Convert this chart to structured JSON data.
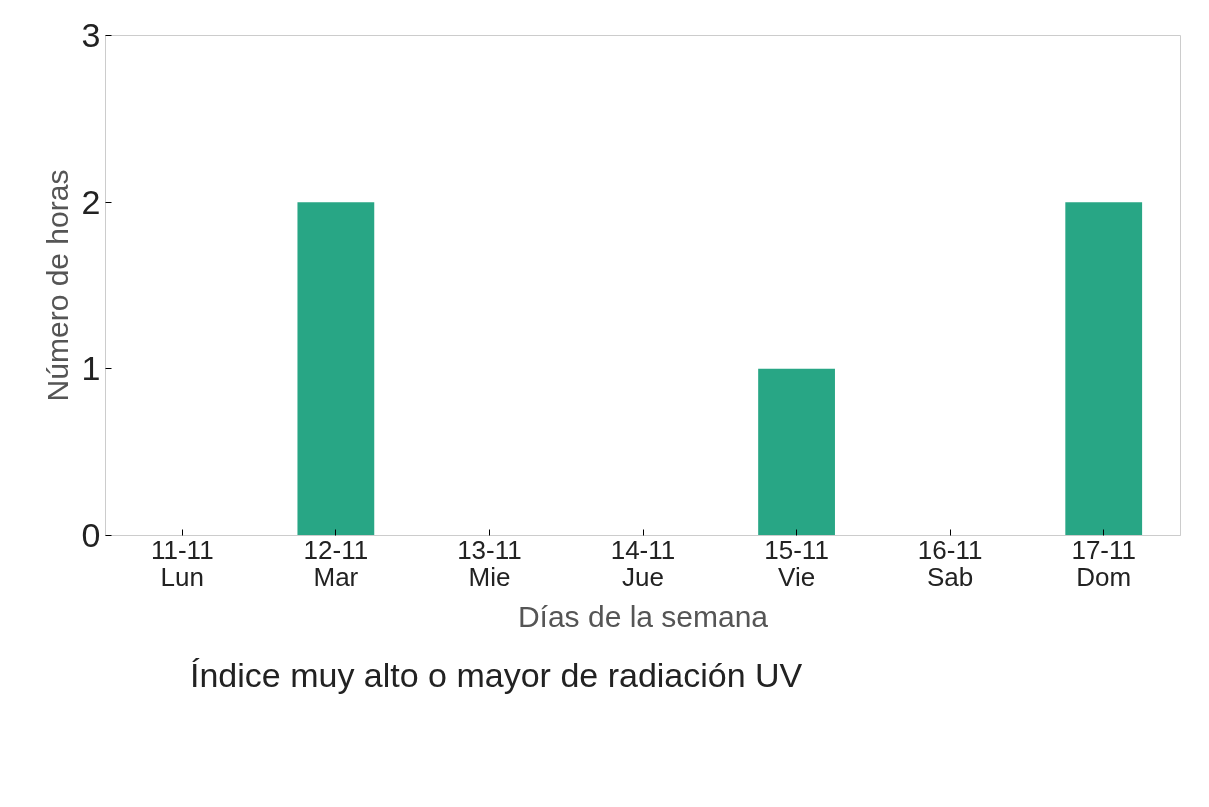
{
  "chart_data": {
    "type": "bar",
    "xlabel": "Días de la semana",
    "ylabel": "Número de horas",
    "categories": [
      "11-11\nLun",
      "12-11\nMar",
      "13-11\nMie",
      "14-11\nJue",
      "15-11\nVie",
      "16-11\nSab",
      "17-11\nDom"
    ],
    "series": [
      {
        "name": "Índice muy alto o mayor de radiación UV",
        "color": "#28a685",
        "values": [
          0,
          2,
          0,
          0,
          1,
          0,
          2
        ]
      }
    ],
    "ylim": [
      0,
      3
    ],
    "yticks": [
      0,
      1,
      2,
      3
    ],
    "grid": false,
    "legend": "bottom"
  }
}
